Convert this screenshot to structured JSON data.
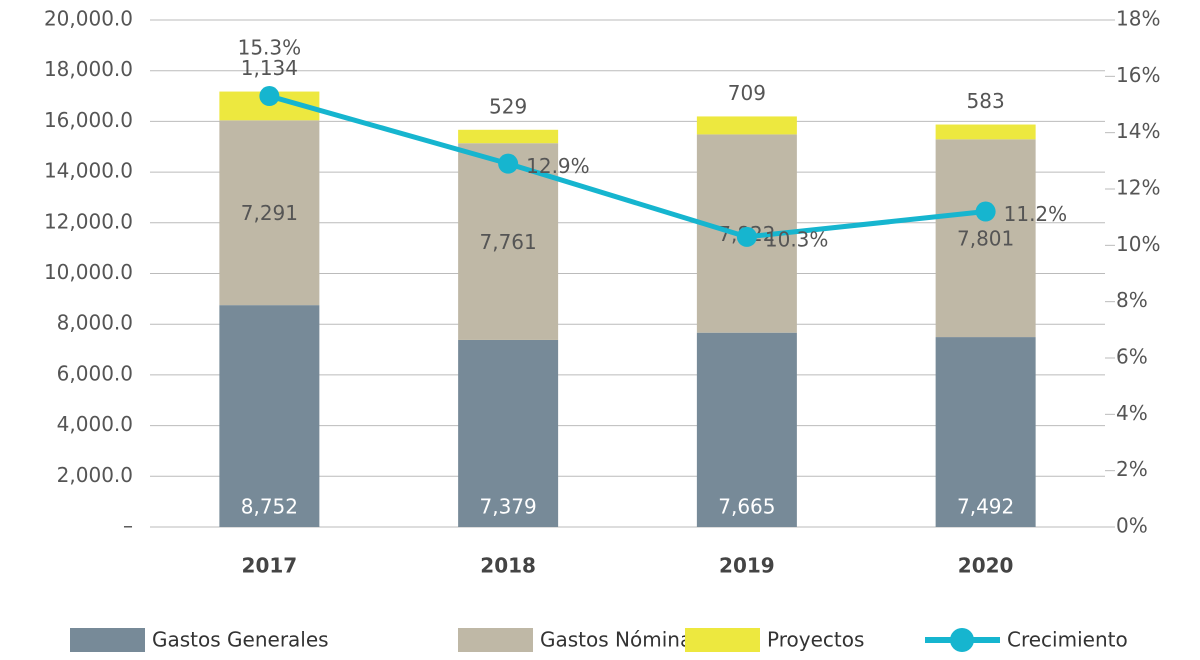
{
  "chart_data": {
    "type": "bar",
    "categories": [
      "2017",
      "2018",
      "2019",
      "2020"
    ],
    "series": [
      {
        "name": "Gastos Generales",
        "color": "#778a98",
        "values": [
          8752,
          7379,
          7665,
          7492
        ],
        "value_labels": [
          "8,752",
          "7,379",
          "7,665",
          "7,492"
        ]
      },
      {
        "name": "Gastos Nómina",
        "color": "#bfb8a6",
        "values": [
          7291,
          7761,
          7822,
          7801
        ],
        "value_labels": [
          "7,291",
          "7,761",
          "7,822",
          "7,801"
        ]
      },
      {
        "name": "Proyectos",
        "color": "#ede83f",
        "values": [
          1134,
          529,
          709,
          583
        ],
        "value_labels": [
          "1,134",
          "529",
          "709",
          "583"
        ]
      },
      {
        "name": "Crecimiento",
        "color": "#16b5cf",
        "type": "line",
        "axis": "y2",
        "values": [
          15.3,
          12.9,
          10.3,
          11.2
        ],
        "value_labels": [
          "15.3%",
          "12.9%",
          "10.3%",
          "11.2%"
        ]
      }
    ],
    "ylim": [
      0,
      20000
    ],
    "yticks": [
      {
        "value": 0,
        "label": "–"
      },
      {
        "value": 2000,
        "label": "2,000.0"
      },
      {
        "value": 4000,
        "label": "4,000.0"
      },
      {
        "value": 6000,
        "label": "6,000.0"
      },
      {
        "value": 8000,
        "label": "8,000.0"
      },
      {
        "value": 10000,
        "label": "10,000.0"
      },
      {
        "value": 12000,
        "label": "12,000.0"
      },
      {
        "value": 14000,
        "label": "14,000.0"
      },
      {
        "value": 16000,
        "label": "16,000.0"
      },
      {
        "value": 18000,
        "label": "18,000.0"
      },
      {
        "value": 20000,
        "label": "20,000.0"
      }
    ],
    "y2lim": [
      0,
      18
    ],
    "y2ticks": [
      {
        "value": 0,
        "label": "0%"
      },
      {
        "value": 2,
        "label": "2%"
      },
      {
        "value": 4,
        "label": "4%"
      },
      {
        "value": 6,
        "label": "6%"
      },
      {
        "value": 8,
        "label": "8%"
      },
      {
        "value": 10,
        "label": "10%"
      },
      {
        "value": 12,
        "label": "12%"
      },
      {
        "value": 14,
        "label": "14%"
      },
      {
        "value": 16,
        "label": "16%"
      },
      {
        "value": 18,
        "label": "18%"
      }
    ],
    "grid": true,
    "legend": "bottom"
  }
}
